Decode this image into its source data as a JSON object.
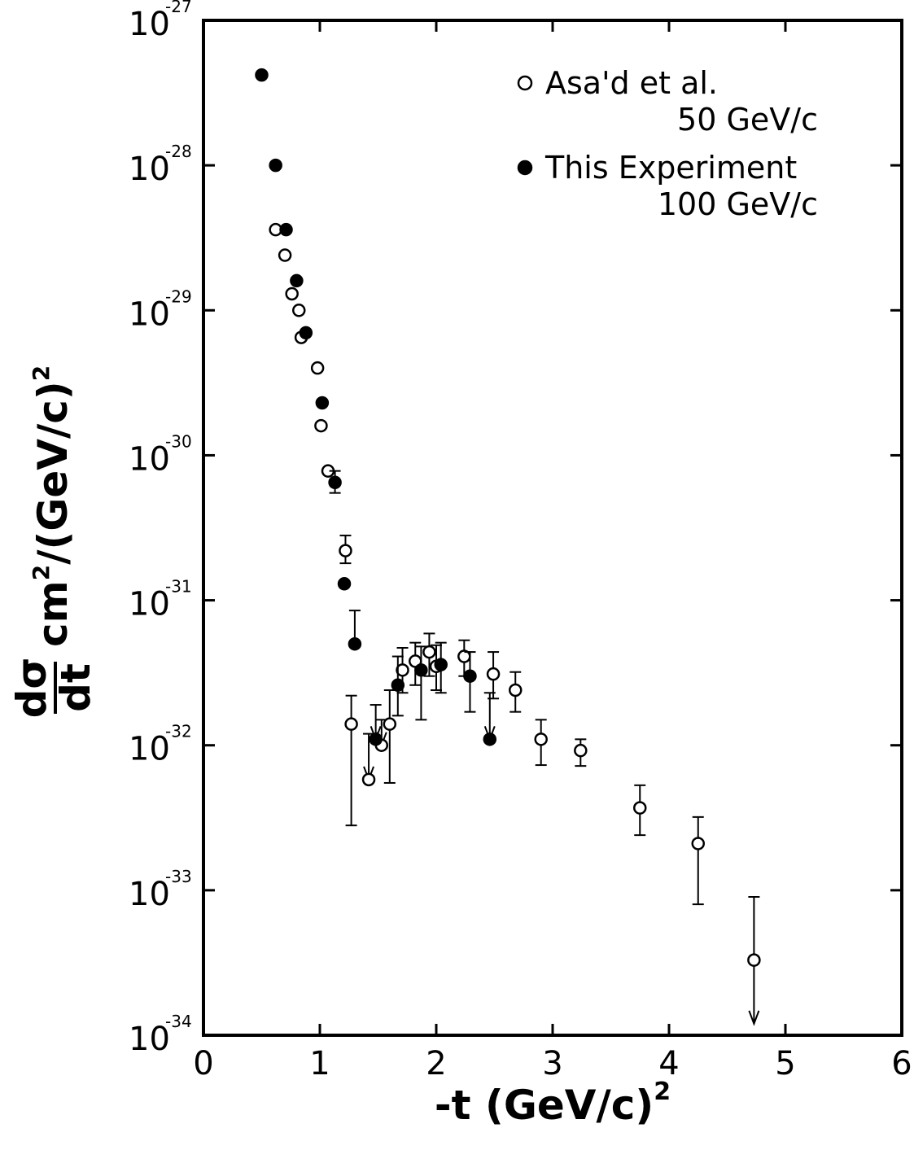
{
  "chart_data": {
    "type": "scatter",
    "log_y": true,
    "xlabel": "-t (GeV/c)",
    "xlabel_superscript": "2",
    "ylabel_frac_num": "dσ",
    "ylabel_frac_den": "dt",
    "ylabel_rest": "cm",
    "ylabel_sup1": "2",
    "ylabel_mid": "/(GeV/c)",
    "ylabel_sup2": "2",
    "xlim": [
      0,
      6
    ],
    "ylim": [
      1e-34,
      1e-27
    ],
    "x_ticks": [
      "0",
      "1",
      "2",
      "3",
      "4",
      "5",
      "6"
    ],
    "y_ticks": [
      {
        "base": "10",
        "exp": "-34"
      },
      {
        "base": "10",
        "exp": "-33"
      },
      {
        "base": "10",
        "exp": "-32"
      },
      {
        "base": "10",
        "exp": "-31"
      },
      {
        "base": "10",
        "exp": "-30"
      },
      {
        "base": "10",
        "exp": "-29"
      },
      {
        "base": "10",
        "exp": "-28"
      },
      {
        "base": "10",
        "exp": "-27"
      }
    ],
    "grid": false,
    "legend_position": "top-right",
    "series": [
      {
        "name": "Asa'd et al.",
        "name_line2": "50 GeV/c",
        "marker": "open-circle",
        "points": [
          {
            "x": 0.62,
            "y": 3.6e-29
          },
          {
            "x": 0.7,
            "y": 2.4e-29
          },
          {
            "x": 0.76,
            "y": 1.3e-29
          },
          {
            "x": 0.82,
            "y": 1e-29
          },
          {
            "x": 0.84,
            "y": 6.5e-30
          },
          {
            "x": 0.98,
            "y": 4e-30
          },
          {
            "x": 1.01,
            "y": 1.6e-30
          },
          {
            "x": 1.07,
            "y": 7.8e-31
          },
          {
            "x": 1.22,
            "y": 2.2e-31,
            "err_lo": 1.8e-31,
            "err_hi": 2.8e-31
          },
          {
            "x": 1.27,
            "y": 1.4e-32,
            "err_lo": 2.8e-33,
            "err_hi": 2.2e-32
          },
          {
            "x": 1.42,
            "y": 5.8e-33,
            "err_lo": 5.8e-33,
            "err_hi": 1.2e-32,
            "upper_limit": true
          },
          {
            "x": 1.53,
            "y": 1e-32,
            "err_lo": 1e-32,
            "err_hi": 1.5e-32,
            "upper_limit": true
          },
          {
            "x": 1.6,
            "y": 1.4e-32,
            "err_lo": 5.5e-33,
            "err_hi": 2.4e-32
          },
          {
            "x": 1.71,
            "y": 3.3e-32,
            "err_lo": 2.3e-32,
            "err_hi": 4.7e-32
          },
          {
            "x": 1.82,
            "y": 3.8e-32,
            "err_lo": 2.6e-32,
            "err_hi": 5.1e-32
          },
          {
            "x": 1.94,
            "y": 4.4e-32,
            "err_lo": 3e-32,
            "err_hi": 5.9e-32
          },
          {
            "x": 2.0,
            "y": 3.5e-32,
            "err_lo": 2.4e-32,
            "err_hi": 4.9e-32
          },
          {
            "x": 2.24,
            "y": 4.1e-32,
            "err_lo": 3e-32,
            "err_hi": 5.3e-32
          },
          {
            "x": 2.49,
            "y": 3.1e-32,
            "err_lo": 2.1e-32,
            "err_hi": 4.4e-32
          },
          {
            "x": 2.68,
            "y": 2.4e-32,
            "err_lo": 1.7e-32,
            "err_hi": 3.2e-32
          },
          {
            "x": 2.9,
            "y": 1.1e-32,
            "err_lo": 7.3e-33,
            "err_hi": 1.5e-32
          },
          {
            "x": 3.24,
            "y": 9.2e-33,
            "err_lo": 7.2e-33,
            "err_hi": 1.1e-32
          },
          {
            "x": 3.75,
            "y": 3.7e-33,
            "err_lo": 2.4e-33,
            "err_hi": 5.3e-33
          },
          {
            "x": 4.25,
            "y": 2.1e-33,
            "err_lo": 8e-34,
            "err_hi": 3.2e-33
          },
          {
            "x": 4.73,
            "y": 3.3e-34,
            "err_lo": 1.2e-34,
            "err_hi": 9e-34,
            "upper_limit": true
          }
        ]
      },
      {
        "name": "This Experiment",
        "name_line2": "100 GeV/c",
        "marker": "filled-circle",
        "points": [
          {
            "x": 0.5,
            "y": 4.2e-28
          },
          {
            "x": 0.62,
            "y": 1e-28
          },
          {
            "x": 0.71,
            "y": 3.6e-29
          },
          {
            "x": 0.8,
            "y": 1.6e-29
          },
          {
            "x": 0.88,
            "y": 7e-30
          },
          {
            "x": 1.02,
            "y": 2.3e-30
          },
          {
            "x": 1.13,
            "y": 6.5e-31,
            "err_lo": 5.5e-31,
            "err_hi": 7.8e-31
          },
          {
            "x": 1.21,
            "y": 1.3e-31
          },
          {
            "x": 1.3,
            "y": 5e-32,
            "err_lo": 5e-32,
            "err_hi": 8.5e-32
          },
          {
            "x": 1.48,
            "y": 1.1e-32,
            "err_lo": 1.1e-32,
            "err_hi": 1.9e-32,
            "upper_limit": true
          },
          {
            "x": 1.67,
            "y": 2.6e-32,
            "err_lo": 1.6e-32,
            "err_hi": 4.1e-32
          },
          {
            "x": 1.87,
            "y": 3.3e-32,
            "err_lo": 1.5e-32,
            "err_hi": 4.8e-32
          },
          {
            "x": 2.04,
            "y": 3.6e-32,
            "err_lo": 2.3e-32,
            "err_hi": 5.1e-32
          },
          {
            "x": 2.29,
            "y": 3e-32,
            "err_lo": 1.7e-32,
            "err_hi": 4.4e-32
          },
          {
            "x": 2.46,
            "y": 1.1e-32,
            "err_lo": 1.1e-32,
            "err_hi": 2.3e-32,
            "upper_limit": true
          }
        ]
      }
    ]
  }
}
